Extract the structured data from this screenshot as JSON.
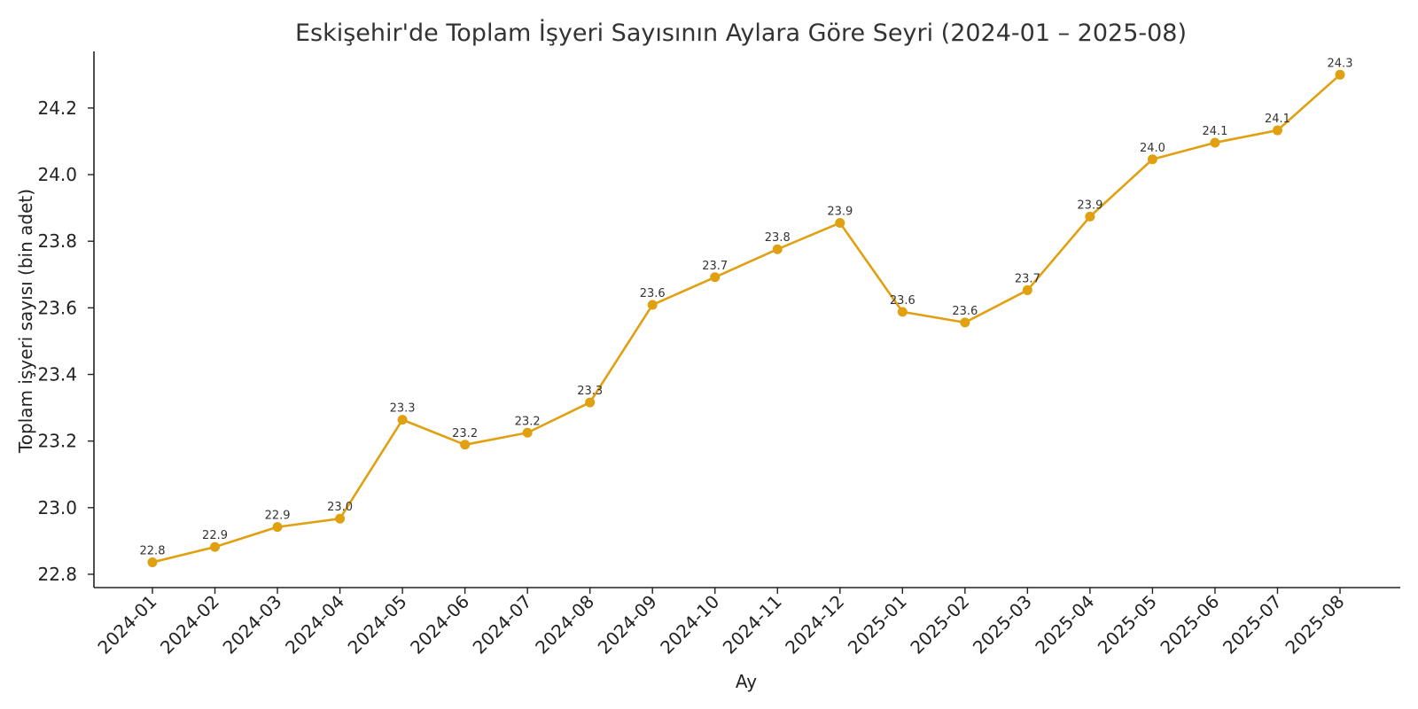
{
  "chart_data": {
    "type": "line",
    "title": "Eskişehir'de Toplam İşyeri Sayısının Aylara Göre Seyri (2024-01 – 2025-08)",
    "xlabel": "Ay",
    "ylabel": "Toplam işyeri sayısı (bin adet)",
    "categories": [
      "2024-01",
      "2024-02",
      "2024-03",
      "2024-04",
      "2024-05",
      "2024-06",
      "2024-07",
      "2024-08",
      "2024-09",
      "2024-10",
      "2024-11",
      "2024-12",
      "2025-01",
      "2025-02",
      "2025-03",
      "2025-04",
      "2025-05",
      "2025-06",
      "2025-07",
      "2025-08"
    ],
    "series": [
      {
        "values": [
          22.836,
          22.882,
          22.942,
          22.967,
          23.264,
          23.189,
          23.225,
          23.316,
          23.609,
          23.692,
          23.776,
          23.855,
          23.588,
          23.556,
          23.653,
          23.874,
          24.046,
          24.096,
          24.133,
          24.3
        ],
        "labels": [
          "22.8",
          "22.9",
          "22.9",
          "23.0",
          "23.3",
          "23.2",
          "23.2",
          "23.3",
          "23.6",
          "23.7",
          "23.8",
          "23.9",
          "23.6",
          "23.6",
          "23.7",
          "23.9",
          "24.0",
          "24.1",
          "24.1",
          "24.3"
        ],
        "color": "#e0a010"
      }
    ],
    "ylim": [
      22.76,
      24.37
    ],
    "yticks": [
      22.8,
      23.0,
      23.2,
      23.4,
      23.6,
      23.8,
      24.0,
      24.2
    ],
    "ytick_labels": [
      "22.8",
      "23.0",
      "23.2",
      "23.4",
      "23.6",
      "23.8",
      "24.0",
      "24.2"
    ],
    "grid": false,
    "legend": "none"
  }
}
